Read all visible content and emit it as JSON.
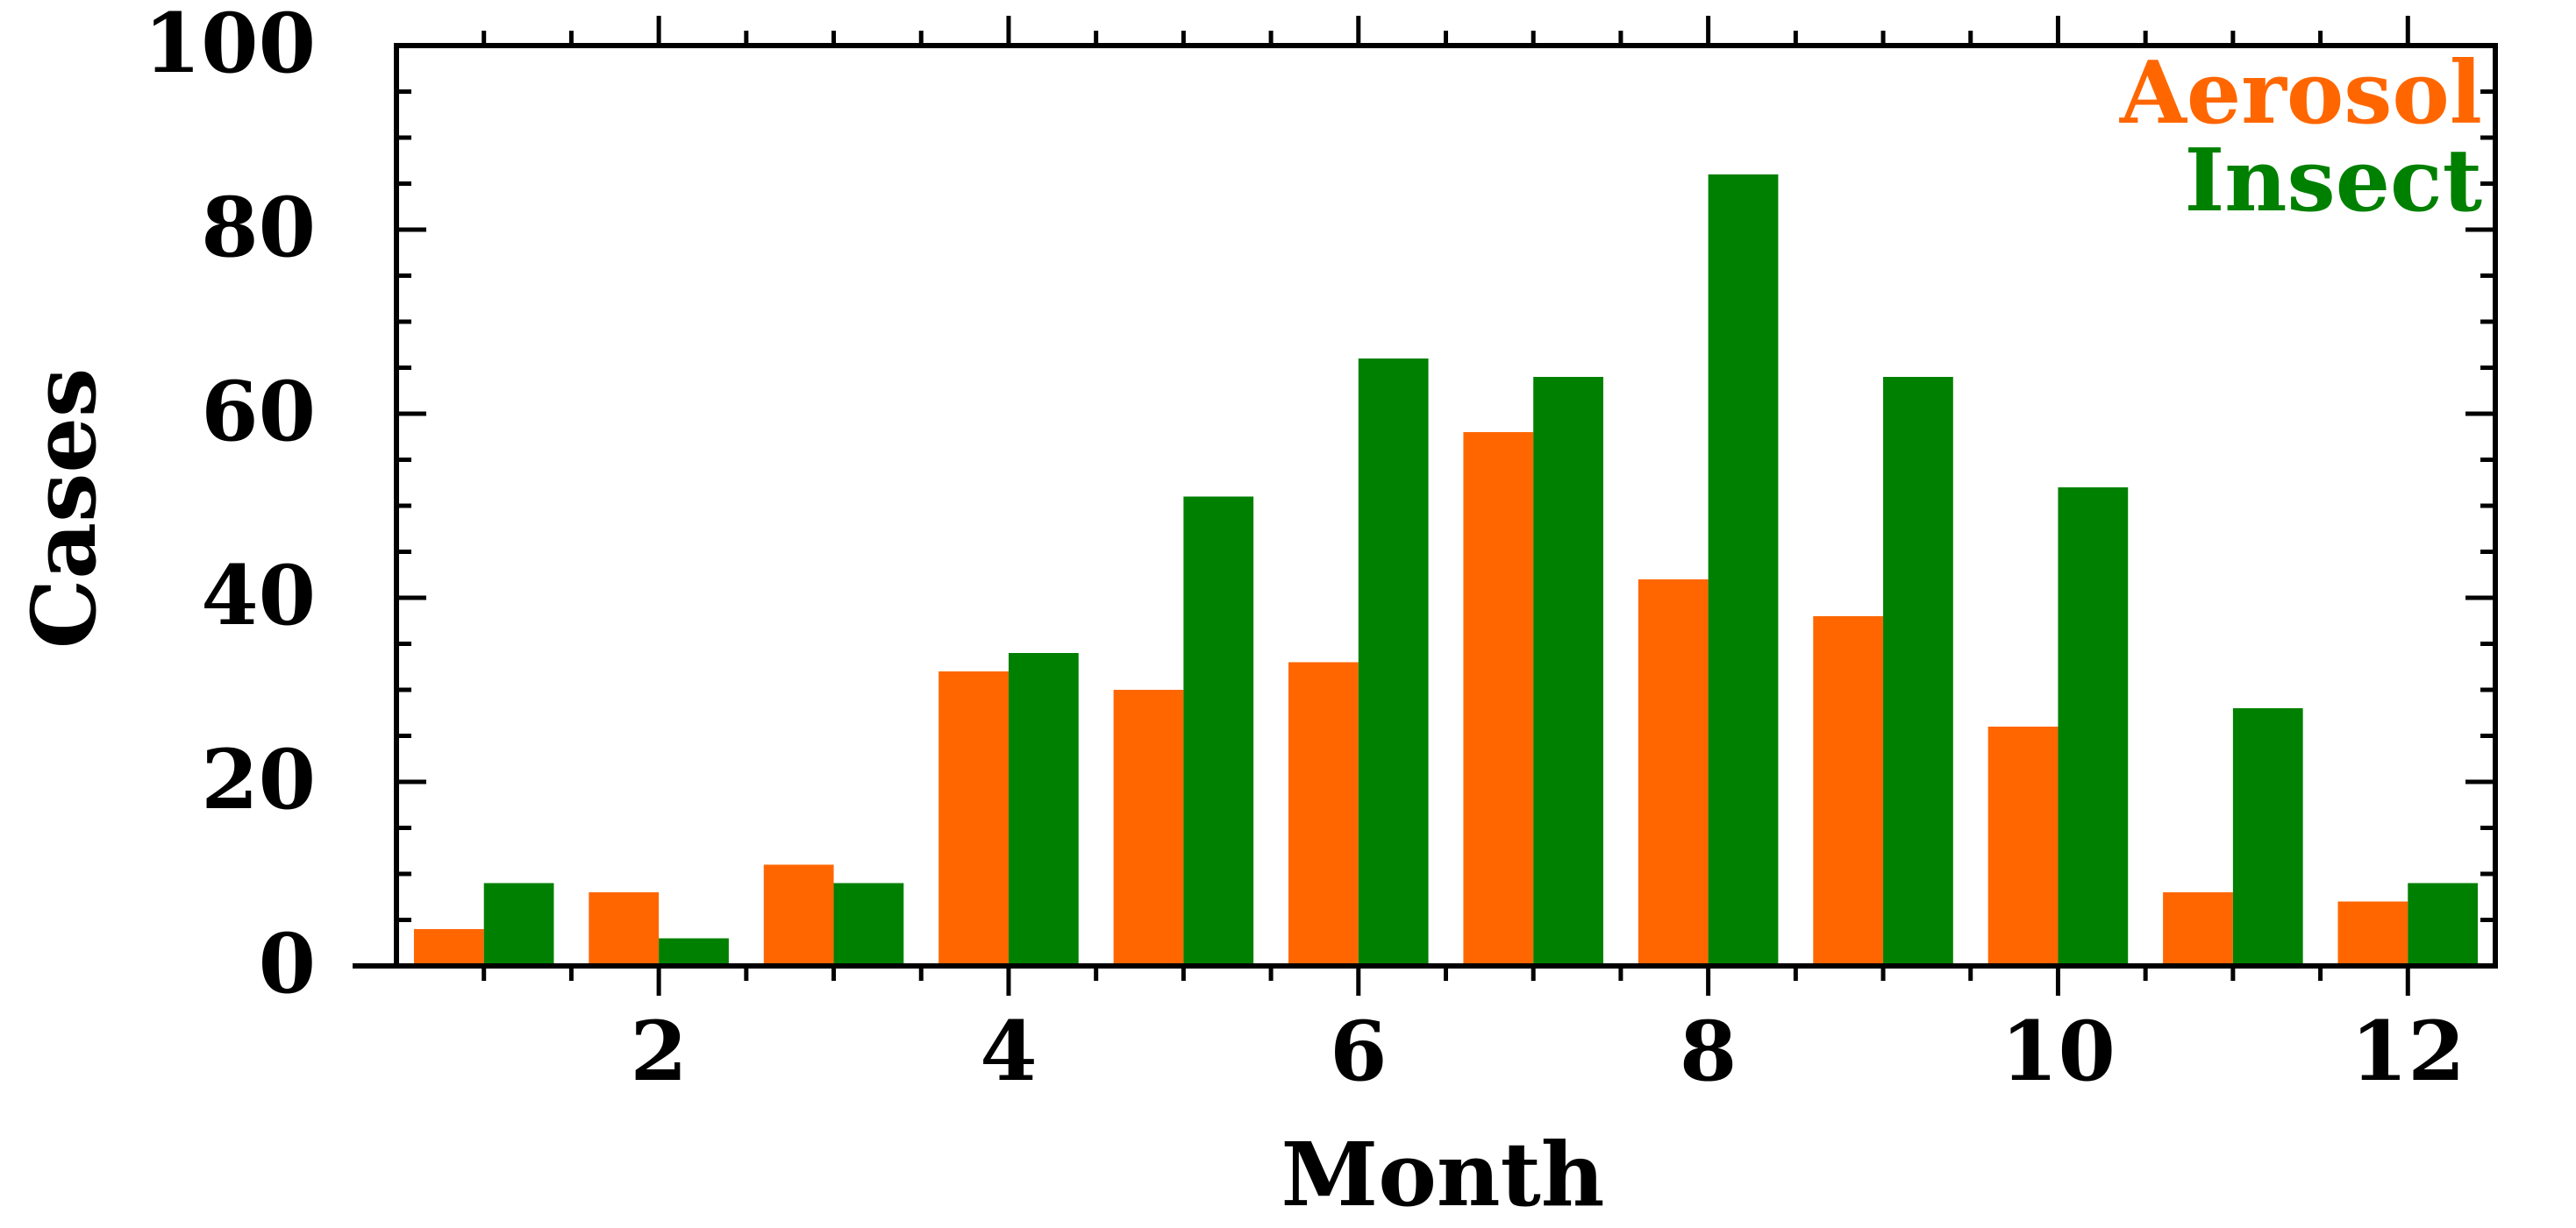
{
  "chart_data": {
    "type": "bar",
    "xlabel": "Month",
    "ylabel": "Cases",
    "x": [
      1,
      2,
      3,
      4,
      5,
      6,
      7,
      8,
      9,
      10,
      11,
      12
    ],
    "xlim": [
      0.5,
      12.5
    ],
    "ylim": [
      0,
      100
    ],
    "x_ticks": [
      2,
      4,
      6,
      8,
      10,
      12
    ],
    "y_ticks": [
      0,
      20,
      40,
      60,
      80,
      100
    ],
    "grid": false,
    "legend_position": "top-right",
    "series": [
      {
        "name": "Aerosol",
        "color": "#ff6600",
        "values": [
          4,
          8,
          11,
          32,
          30,
          33,
          58,
          42,
          38,
          26,
          8,
          7
        ]
      },
      {
        "name": "Insect",
        "color": "#008000",
        "values": [
          9,
          3,
          9,
          34,
          51,
          66,
          64,
          86,
          64,
          52,
          28,
          9
        ]
      }
    ]
  }
}
